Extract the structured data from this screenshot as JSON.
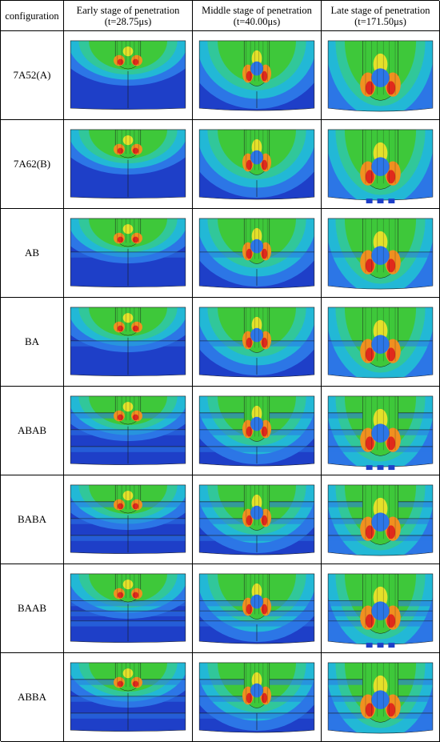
{
  "header": {
    "col0": "configuration",
    "col1_line1": "Early stage of penetration",
    "col1_line2": "(t=28.75μs)",
    "col2_line1": "Middle stage of penetration",
    "col2_line2": "(t=40.00μs)",
    "col3_line1": "Late stage of penetration",
    "col3_line2": "(t=171.50μs)"
  },
  "rows": [
    {
      "label": "7A52(A)",
      "layers": [],
      "fragments": false
    },
    {
      "label": "7A62(B)",
      "layers": [],
      "fragments": true
    },
    {
      "label": "AB",
      "layers": [
        0.5
      ],
      "fragments": false
    },
    {
      "label": "BA",
      "layers": [
        0.5
      ],
      "fragments": false
    },
    {
      "label": "ABAB",
      "layers": [
        0.25,
        0.5,
        0.75
      ],
      "fragments": true
    },
    {
      "label": "BABA",
      "layers": [
        0.25,
        0.5,
        0.75
      ],
      "fragments": false
    },
    {
      "label": "BAAB",
      "layers": [
        0.4,
        0.55,
        0.7
      ],
      "fragments": true
    },
    {
      "label": "ABBA",
      "layers": [
        0.25,
        0.5,
        0.75
      ],
      "fragments": false
    }
  ],
  "colors": {
    "blue_dark": "#1e3fc8",
    "blue": "#2c76e6",
    "cyan": "#22b8d6",
    "teal": "#31c79a",
    "green": "#3ec83a",
    "yellow": "#e4e02a",
    "orange": "#f09020",
    "red": "#e02a1c"
  }
}
